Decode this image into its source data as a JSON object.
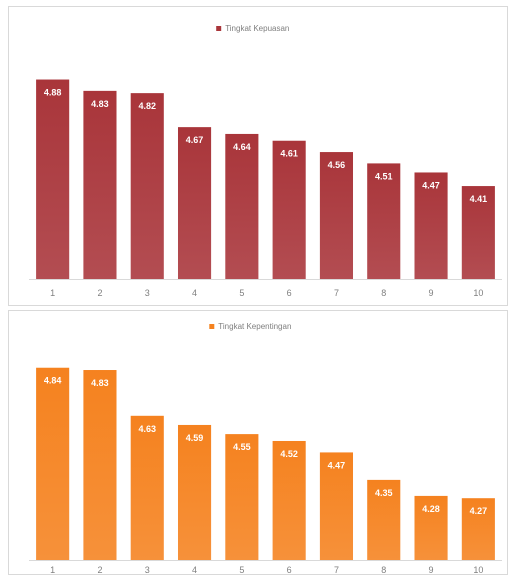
{
  "chart_data": [
    {
      "type": "bar",
      "categories": [
        "1",
        "2",
        "3",
        "4",
        "5",
        "6",
        "7",
        "8",
        "9",
        "10"
      ],
      "series": [
        {
          "name": "Tingkat Kepuasan",
          "values": [
            4.88,
            4.83,
            4.82,
            4.67,
            4.64,
            4.61,
            4.56,
            4.51,
            4.47,
            4.41
          ]
        }
      ],
      "title": "",
      "xlabel": "",
      "ylabel": "",
      "ylim": [
        4.0,
        4.9
      ],
      "data_labels": true,
      "legend": "top-center",
      "grid": false,
      "color": "#a9353a"
    },
    {
      "type": "bar",
      "categories": [
        "1",
        "2",
        "3",
        "4",
        "5",
        "6",
        "7",
        "8",
        "9",
        "10"
      ],
      "series": [
        {
          "name": "Tingkat Kepentingan",
          "values": [
            4.84,
            4.83,
            4.63,
            4.59,
            4.55,
            4.52,
            4.47,
            4.35,
            4.28,
            4.27
          ]
        }
      ],
      "title": "",
      "xlabel": "",
      "ylabel": "",
      "ylim": [
        4.0,
        4.9
      ],
      "data_labels": true,
      "legend": "top-center",
      "grid": false,
      "color": "#f5821f"
    }
  ]
}
